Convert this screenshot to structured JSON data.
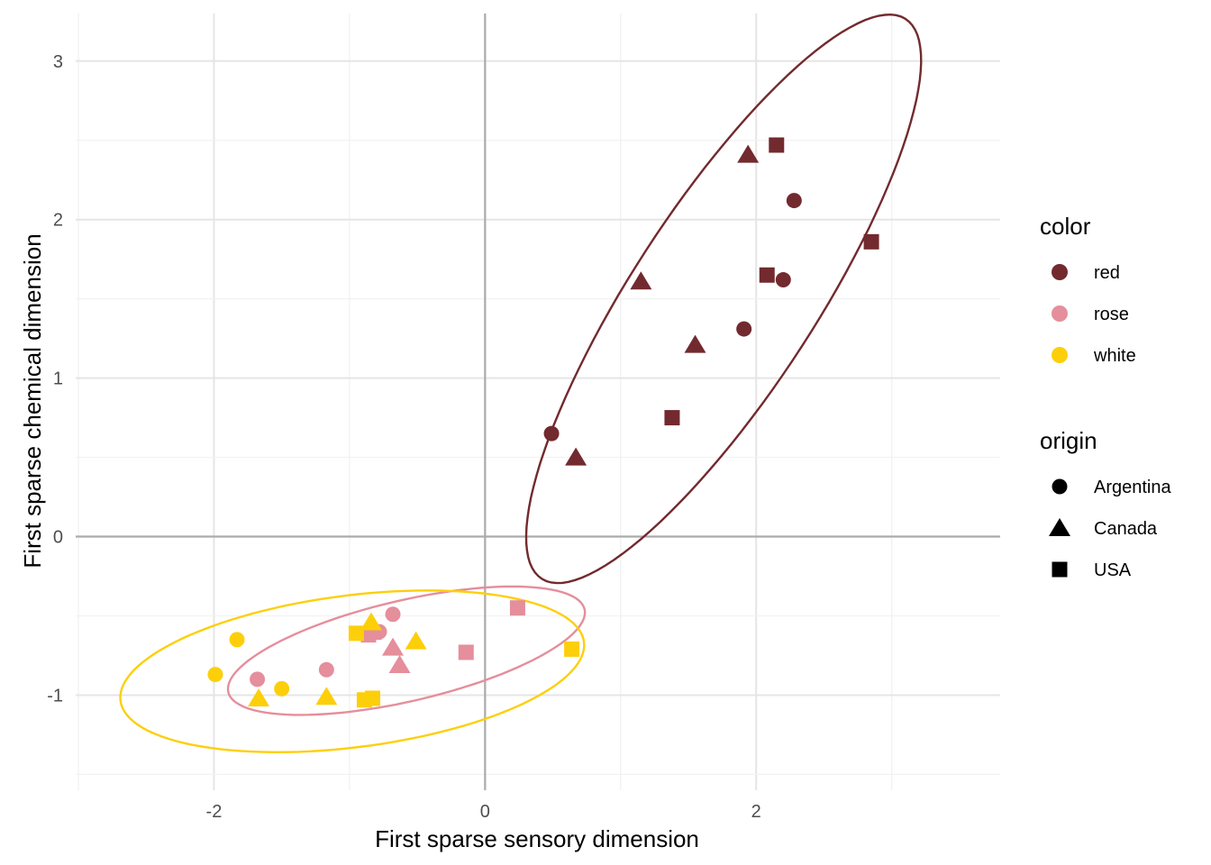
{
  "chart_data": {
    "type": "scatter",
    "xlabel": "First sparse sensory dimension",
    "ylabel": "First sparse chemical dimension",
    "xlim": [
      -3.02,
      3.8
    ],
    "ylim": [
      -1.6,
      3.3
    ],
    "x_ticks": [
      -2,
      0,
      2
    ],
    "y_ticks": [
      -1,
      0,
      1,
      2,
      3
    ],
    "x_tick_labels": [
      "-2",
      "0",
      "2"
    ],
    "y_tick_labels": [
      "-1",
      "0",
      "1",
      "2",
      "3"
    ],
    "grid": true,
    "reference_lines": {
      "x": 0,
      "y": 0
    },
    "colors": {
      "red": "#722a2e",
      "rose": "#e58e9c",
      "white": "#fdcf0a"
    },
    "legend": {
      "placement": "right",
      "color_title": "color",
      "color_items": [
        {
          "label": "red",
          "color": "#722a2e"
        },
        {
          "label": "rose",
          "color": "#e58e9c"
        },
        {
          "label": "white",
          "color": "#fdcf0a"
        }
      ],
      "shape_title": "origin",
      "shape_items": [
        {
          "label": "Argentina",
          "shape": "circle"
        },
        {
          "label": "Canada",
          "shape": "triangle"
        },
        {
          "label": "USA",
          "shape": "square"
        }
      ]
    },
    "ellipses": [
      {
        "group": "red",
        "cx": 1.76,
        "cy": 1.5,
        "a": 2.22,
        "b": 0.64,
        "angle_deg": 52
      },
      {
        "group": "rose",
        "cx": -0.58,
        "cy": -0.72,
        "a": 1.34,
        "b": 0.32,
        "angle_deg": 11
      },
      {
        "group": "white",
        "cx": -0.98,
        "cy": -0.85,
        "a": 1.72,
        "b": 0.48,
        "angle_deg": 6
      }
    ],
    "points": [
      {
        "color": "red",
        "origin": "Argentina",
        "x": 0.49,
        "y": 0.65
      },
      {
        "color": "red",
        "origin": "Argentina",
        "x": 1.91,
        "y": 1.31
      },
      {
        "color": "red",
        "origin": "Argentina",
        "x": 2.2,
        "y": 1.62
      },
      {
        "color": "red",
        "origin": "Argentina",
        "x": 2.28,
        "y": 2.12
      },
      {
        "color": "red",
        "origin": "Canada",
        "x": 0.67,
        "y": 0.5
      },
      {
        "color": "red",
        "origin": "Canada",
        "x": 1.15,
        "y": 1.61
      },
      {
        "color": "red",
        "origin": "Canada",
        "x": 1.55,
        "y": 1.21
      },
      {
        "color": "red",
        "origin": "Canada",
        "x": 1.94,
        "y": 2.41
      },
      {
        "color": "red",
        "origin": "USA",
        "x": 1.38,
        "y": 0.75
      },
      {
        "color": "red",
        "origin": "USA",
        "x": 2.08,
        "y": 1.65
      },
      {
        "color": "red",
        "origin": "USA",
        "x": 2.15,
        "y": 2.47
      },
      {
        "color": "red",
        "origin": "USA",
        "x": 2.85,
        "y": 1.86
      },
      {
        "color": "rose",
        "origin": "Argentina",
        "x": -1.68,
        "y": -0.9
      },
      {
        "color": "rose",
        "origin": "Argentina",
        "x": -1.17,
        "y": -0.84
      },
      {
        "color": "rose",
        "origin": "Argentina",
        "x": -0.78,
        "y": -0.6
      },
      {
        "color": "rose",
        "origin": "Argentina",
        "x": -0.68,
        "y": -0.49
      },
      {
        "color": "rose",
        "origin": "Canada",
        "x": -0.84,
        "y": -0.6
      },
      {
        "color": "rose",
        "origin": "Canada",
        "x": -0.68,
        "y": -0.7
      },
      {
        "color": "rose",
        "origin": "Canada",
        "x": -0.63,
        "y": -0.81
      },
      {
        "color": "rose",
        "origin": "USA",
        "x": -0.86,
        "y": -0.62
      },
      {
        "color": "rose",
        "origin": "USA",
        "x": -0.14,
        "y": -0.73
      },
      {
        "color": "rose",
        "origin": "USA",
        "x": 0.24,
        "y": -0.45
      },
      {
        "color": "white",
        "origin": "Argentina",
        "x": -1.99,
        "y": -0.87
      },
      {
        "color": "white",
        "origin": "Argentina",
        "x": -1.83,
        "y": -0.65
      },
      {
        "color": "white",
        "origin": "Argentina",
        "x": -1.5,
        "y": -0.96
      },
      {
        "color": "white",
        "origin": "Canada",
        "x": -1.67,
        "y": -1.02
      },
      {
        "color": "white",
        "origin": "Canada",
        "x": -1.17,
        "y": -1.01
      },
      {
        "color": "white",
        "origin": "Canada",
        "x": -0.84,
        "y": -0.54
      },
      {
        "color": "white",
        "origin": "Canada",
        "x": -0.51,
        "y": -0.66
      },
      {
        "color": "white",
        "origin": "USA",
        "x": -0.95,
        "y": -0.61
      },
      {
        "color": "white",
        "origin": "USA",
        "x": -0.89,
        "y": -1.03
      },
      {
        "color": "white",
        "origin": "USA",
        "x": -0.83,
        "y": -1.02
      },
      {
        "color": "white",
        "origin": "USA",
        "x": 0.64,
        "y": -0.71
      }
    ]
  }
}
